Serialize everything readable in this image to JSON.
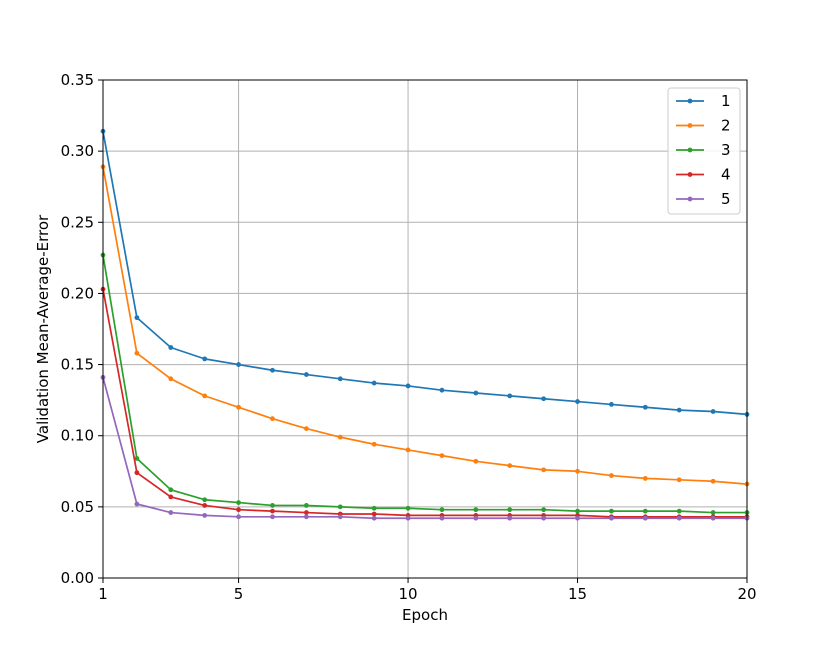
{
  "chart_data": {
    "type": "line",
    "title": "",
    "xlabel": "Epoch",
    "ylabel": "Validation Mean-Average-Error",
    "xlim": [
      1,
      20
    ],
    "ylim": [
      0,
      0.35
    ],
    "xticks": [
      1,
      5,
      10,
      15,
      20
    ],
    "yticks": [
      0.0,
      0.05,
      0.1,
      0.15,
      0.2,
      0.25,
      0.3,
      0.35
    ],
    "xtick_labels": [
      "1",
      "5",
      "10",
      "15",
      "20"
    ],
    "ytick_labels": [
      "0.00",
      "0.05",
      "0.10",
      "0.15",
      "0.20",
      "0.25",
      "0.30",
      "0.35"
    ],
    "grid": true,
    "legend_position": "top-right",
    "x": [
      1,
      2,
      3,
      4,
      5,
      6,
      7,
      8,
      9,
      10,
      11,
      12,
      13,
      14,
      15,
      16,
      17,
      18,
      19,
      20
    ],
    "series": [
      {
        "name": "1",
        "color": "#1f77b4",
        "values": [
          0.314,
          0.183,
          0.162,
          0.154,
          0.15,
          0.146,
          0.143,
          0.14,
          0.137,
          0.135,
          0.132,
          0.13,
          0.128,
          0.126,
          0.124,
          0.122,
          0.12,
          0.118,
          0.117,
          0.115
        ]
      },
      {
        "name": "2",
        "color": "#ff7f0e",
        "values": [
          0.289,
          0.158,
          0.14,
          0.128,
          0.12,
          0.112,
          0.105,
          0.099,
          0.094,
          0.09,
          0.086,
          0.082,
          0.079,
          0.076,
          0.075,
          0.072,
          0.07,
          0.069,
          0.068,
          0.066
        ]
      },
      {
        "name": "3",
        "color": "#2ca02c",
        "values": [
          0.227,
          0.084,
          0.062,
          0.055,
          0.053,
          0.051,
          0.051,
          0.05,
          0.049,
          0.049,
          0.048,
          0.048,
          0.048,
          0.048,
          0.047,
          0.047,
          0.047,
          0.047,
          0.046,
          0.046
        ]
      },
      {
        "name": "4",
        "color": "#d62728",
        "values": [
          0.203,
          0.074,
          0.057,
          0.051,
          0.048,
          0.047,
          0.046,
          0.045,
          0.045,
          0.044,
          0.044,
          0.044,
          0.044,
          0.044,
          0.044,
          0.043,
          0.043,
          0.043,
          0.043,
          0.043
        ]
      },
      {
        "name": "5",
        "color": "#9467bd",
        "values": [
          0.141,
          0.052,
          0.046,
          0.044,
          0.043,
          0.043,
          0.043,
          0.043,
          0.042,
          0.042,
          0.042,
          0.042,
          0.042,
          0.042,
          0.042,
          0.042,
          0.042,
          0.042,
          0.042,
          0.042
        ]
      }
    ]
  }
}
